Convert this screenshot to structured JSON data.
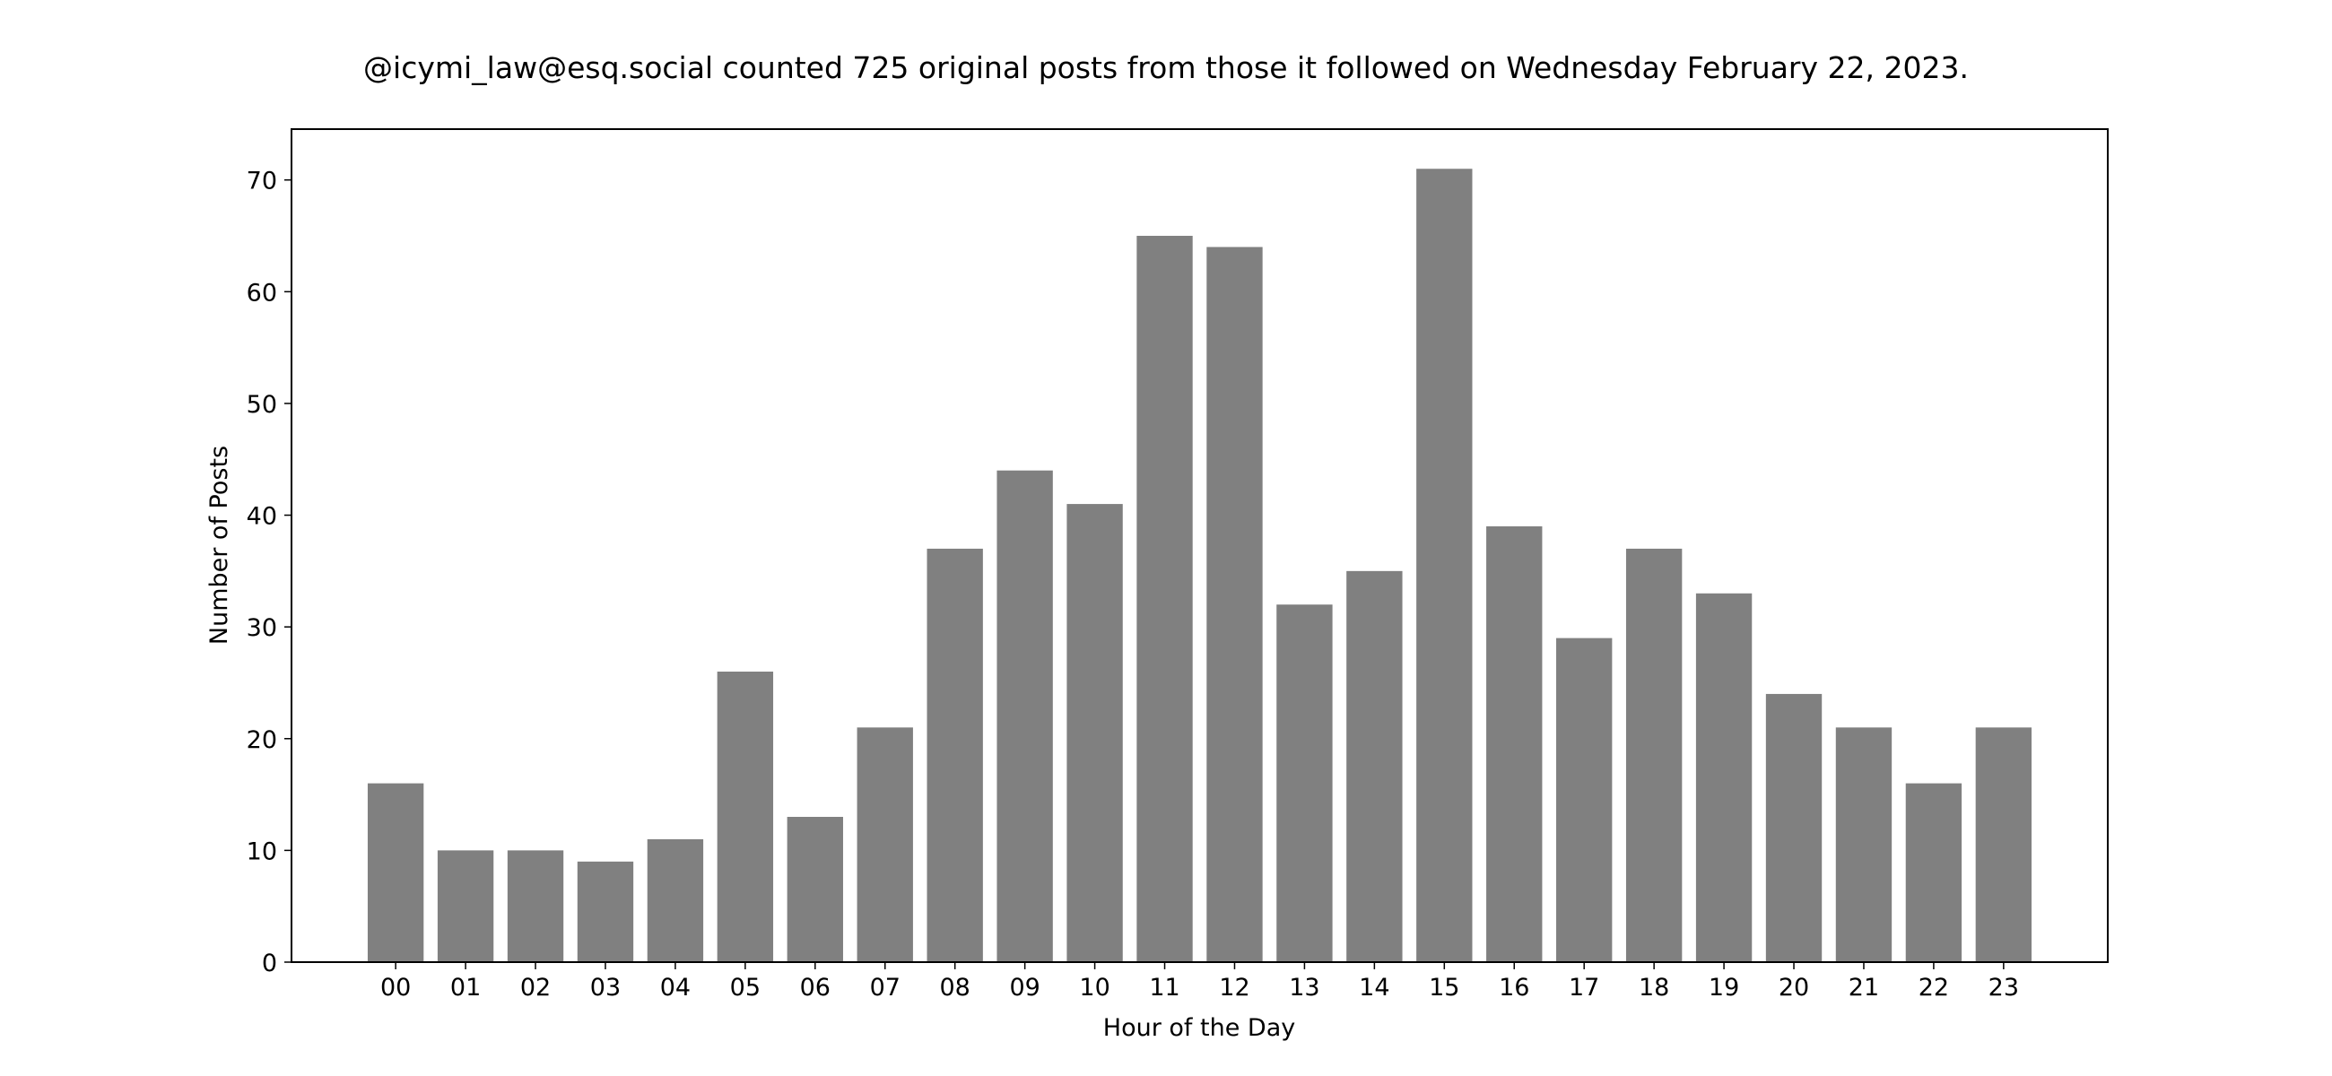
{
  "chart_data": {
    "type": "bar",
    "title": "@icymi_law@esq.social counted 725 original posts from those it followed on Wednesday February 22, 2023.",
    "xlabel": "Hour of the Day",
    "ylabel": "Number of Posts",
    "categories": [
      "00",
      "01",
      "02",
      "03",
      "04",
      "05",
      "06",
      "07",
      "08",
      "09",
      "10",
      "11",
      "12",
      "13",
      "14",
      "15",
      "16",
      "17",
      "18",
      "19",
      "20",
      "21",
      "22",
      "23"
    ],
    "values": [
      16,
      10,
      10,
      9,
      11,
      26,
      13,
      21,
      37,
      44,
      41,
      65,
      64,
      32,
      35,
      71,
      39,
      29,
      37,
      33,
      24,
      21,
      16,
      21
    ],
    "yticks": [
      0,
      10,
      20,
      30,
      40,
      50,
      60,
      70
    ],
    "ylim": [
      0,
      74.55
    ],
    "grid": false,
    "bar_color": "#808080"
  }
}
